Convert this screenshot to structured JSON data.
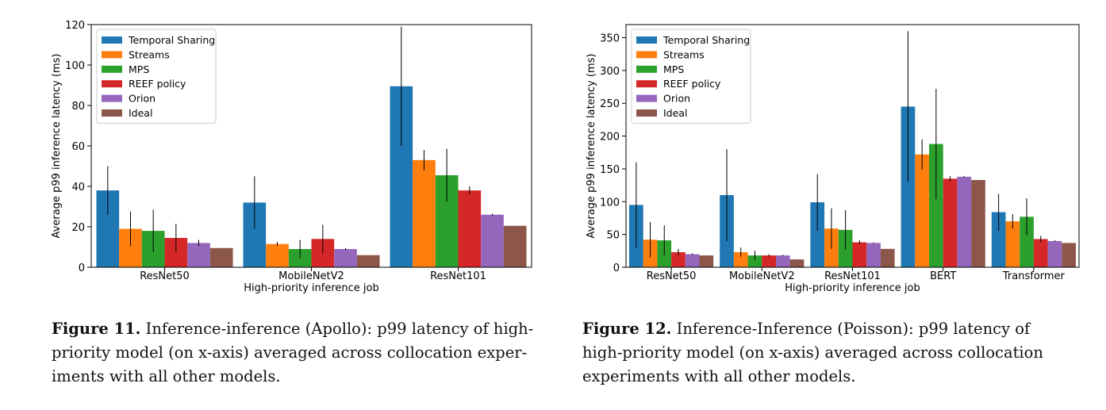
{
  "chart_data": [
    {
      "type": "bar",
      "ylabel": "Average p99 inference latency (ms)",
      "xlabel": "High-priority inference job",
      "ylim": [
        0,
        120
      ],
      "yticks": [
        0,
        20,
        40,
        60,
        80,
        100,
        120
      ],
      "legend_position": "top-left",
      "categories": [
        "ResNet50",
        "MobileNetV2",
        "ResNet101"
      ],
      "series": [
        {
          "name": "Temporal Sharing",
          "color": "#1f77b4",
          "values": [
            38,
            32,
            89.5
          ],
          "errors": [
            12,
            13,
            29.5
          ]
        },
        {
          "name": "Streams",
          "color": "#ff7f0e",
          "values": [
            19,
            11.5,
            53
          ],
          "errors": [
            8.5,
            1,
            5
          ]
        },
        {
          "name": "MPS",
          "color": "#2ca02c",
          "values": [
            18,
            9,
            45.5
          ],
          "errors": [
            10.5,
            4.5,
            13
          ]
        },
        {
          "name": "REEF policy",
          "color": "#d62728",
          "values": [
            14.5,
            14,
            38
          ],
          "errors": [
            7,
            7,
            2
          ]
        },
        {
          "name": "Orion",
          "color": "#9467bd",
          "values": [
            12,
            9,
            26
          ],
          "errors": [
            1.5,
            0.5,
            0.5
          ]
        },
        {
          "name": "Ideal",
          "color": "#8c564b",
          "values": [
            9.5,
            6,
            20.5
          ],
          "errors": [
            0,
            0,
            0
          ]
        }
      ],
      "caption": {
        "label": "Figure 11.",
        "text": "Inference-inference (Apollo): p99 latency of high-priority model (on x-axis) averaged across collocation experiments with all other models.",
        "lines": [
          "Inference-inference (Apollo): p99 latency of high-",
          "priority model (on x-axis) averaged across collocation exper-",
          "iments with all other models."
        ]
      }
    },
    {
      "type": "bar",
      "ylabel": "Average p99 inference latency (ms)",
      "xlabel": "High-priority inference job",
      "ylim": [
        0,
        370
      ],
      "yticks": [
        0,
        50,
        100,
        150,
        200,
        250,
        300,
        350
      ],
      "legend_position": "top-left",
      "categories": [
        "ResNet50",
        "MobileNetV2",
        "ResNet101",
        "BERT",
        "Transformer"
      ],
      "series": [
        {
          "name": "Temporal Sharing",
          "color": "#1f77b4",
          "values": [
            95,
            110,
            99,
            245,
            84
          ],
          "errors": [
            65,
            70,
            43,
            115,
            28
          ]
        },
        {
          "name": "Streams",
          "color": "#ff7f0e",
          "values": [
            42,
            23,
            59,
            172,
            70
          ],
          "errors": [
            27,
            7,
            31,
            23,
            11
          ]
        },
        {
          "name": "MPS",
          "color": "#2ca02c",
          "values": [
            41,
            18,
            57,
            188,
            77
          ],
          "errors": [
            23,
            7,
            30,
            84,
            28
          ]
        },
        {
          "name": "REEF policy",
          "color": "#d62728",
          "values": [
            23,
            18,
            38,
            135,
            43
          ],
          "errors": [
            5,
            2,
            3,
            4,
            5
          ]
        },
        {
          "name": "Orion",
          "color": "#9467bd",
          "values": [
            20,
            18,
            37,
            138,
            40
          ],
          "errors": [
            1,
            1,
            1,
            1,
            1
          ]
        },
        {
          "name": "Ideal",
          "color": "#8c564b",
          "values": [
            18,
            12,
            28,
            133,
            37
          ],
          "errors": [
            0,
            0,
            0,
            0,
            0
          ]
        }
      ],
      "caption": {
        "label": "Figure 12.",
        "text": "Inference-Inference (Poisson): p99 latency of high-priority model (on x-axis) averaged across collocation experiments with all other models.",
        "lines": [
          "Inference-Inference (Poisson): p99 latency of",
          "high-priority model (on x-axis) averaged across collocation",
          "experiments with all other models."
        ]
      }
    }
  ]
}
